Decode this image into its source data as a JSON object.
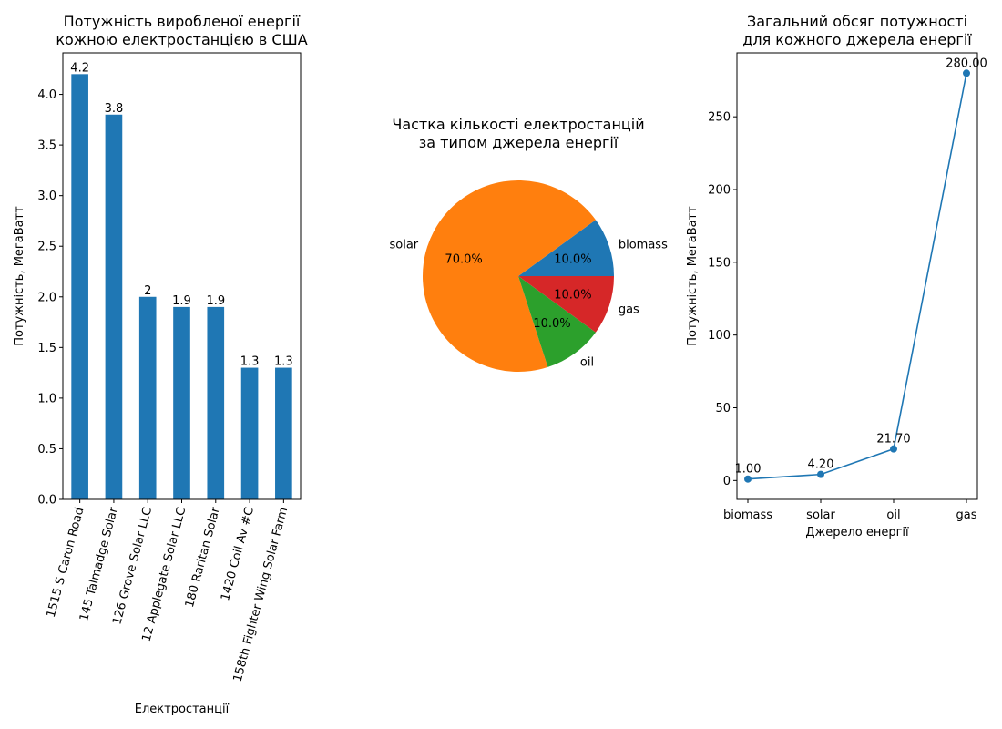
{
  "chart_data": [
    {
      "type": "bar",
      "title": [
        "Потужність виробленої енергії",
        "кожною електростанцією в США"
      ],
      "xlabel": "Електростанції",
      "ylabel": "Потужність, МегаВатт",
      "categories": [
        "1515 S Caron Road",
        "145 Talmadge Solar",
        "126 Grove Solar LLC",
        "12 Applegate Solar LLC",
        "180 Raritan Solar",
        "1420 Coil Av #C",
        "158th Fighter Wing Solar Farm"
      ],
      "values": [
        4.2,
        3.8,
        2.0,
        1.9,
        1.9,
        1.3,
        1.3
      ],
      "value_labels": [
        "4.2",
        "3.8",
        "2",
        "1.9",
        "1.9",
        "1.3",
        "1.3"
      ],
      "ylim": [
        0,
        4.41
      ],
      "yticks": [
        "0.0",
        "0.5",
        "1.0",
        "1.5",
        "2.0",
        "2.5",
        "3.0",
        "3.5",
        "4.0"
      ],
      "color": "#1f77b4"
    },
    {
      "type": "pie",
      "title": [
        "Частка кількості електростанцій",
        "за типом джерела енергії"
      ],
      "labels": [
        "biomass",
        "solar",
        "oil",
        "gas"
      ],
      "values": [
        10,
        70,
        10,
        10
      ],
      "pct_labels": [
        "10.0%",
        "70.0%",
        "10.0%",
        "10.0%"
      ],
      "colors": [
        "#1f77b4",
        "#ff7f0e",
        "#2ca02c",
        "#d62728"
      ]
    },
    {
      "type": "line",
      "title": [
        "Загальний обсяг потужності",
        "для кожного джерела енергії"
      ],
      "xlabel": "Джерело енергії",
      "ylabel": "Потужність, МегаВатт",
      "categories": [
        "biomass",
        "solar",
        "oil",
        "gas"
      ],
      "values": [
        1.0,
        4.2,
        21.7,
        280.0
      ],
      "value_labels": [
        "1.00",
        "4.20",
        "21.70",
        "280.00"
      ],
      "ylim": [
        -12.95,
        293.95
      ],
      "yticks": [
        "0",
        "50",
        "100",
        "150",
        "200",
        "250"
      ],
      "color": "#1f77b4"
    }
  ]
}
